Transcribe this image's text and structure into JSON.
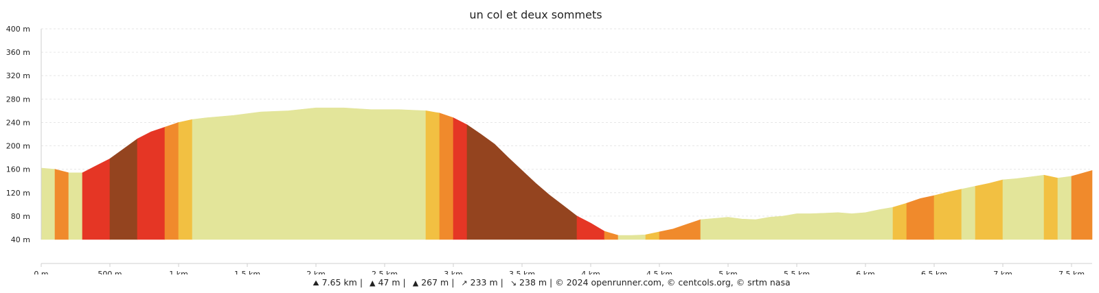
{
  "chart_data": {
    "type": "area",
    "title": "un col et deux sommets",
    "xlabel": "",
    "ylabel": "",
    "x_unit": "km",
    "xlim": [
      0,
      7.65
    ],
    "ylim": [
      40,
      400
    ],
    "y_ticks": [
      40,
      80,
      120,
      160,
      200,
      240,
      280,
      320,
      360,
      400
    ],
    "y_tick_labels": [
      "40 m",
      "80 m",
      "120 m",
      "160 m",
      "200 m",
      "240 m",
      "280 m",
      "320 m",
      "360 m",
      "400 m"
    ],
    "x_ticks": [
      0,
      0.5,
      1,
      1.5,
      2,
      2.5,
      3,
      3.5,
      4,
      4.5,
      5,
      5.5,
      6,
      6.5,
      7,
      7.5
    ],
    "x_tick_labels": [
      "0 m",
      "500 m",
      "1 km",
      "1.5 km",
      "2 km",
      "2.5 km",
      "3 km",
      "3.5 km",
      "4 km",
      "4.5 km",
      "5 km",
      "5.5 km",
      "6 km",
      "6.5 km",
      "7 km",
      "7.5 km"
    ],
    "grid": true,
    "profile": {
      "x": [
        0,
        0.1,
        0.2,
        0.3,
        0.4,
        0.5,
        0.6,
        0.7,
        0.8,
        0.9,
        1.0,
        1.1,
        1.2,
        1.4,
        1.6,
        1.8,
        2.0,
        2.2,
        2.4,
        2.6,
        2.8,
        2.9,
        3.0,
        3.1,
        3.2,
        3.3,
        3.4,
        3.5,
        3.6,
        3.7,
        3.8,
        3.9,
        4.0,
        4.1,
        4.2,
        4.3,
        4.4,
        4.5,
        4.6,
        4.7,
        4.8,
        5.0,
        5.1,
        5.2,
        5.3,
        5.4,
        5.5,
        5.6,
        5.7,
        5.8,
        5.9,
        6.0,
        6.1,
        6.2,
        6.3,
        6.4,
        6.5,
        6.6,
        6.7,
        6.8,
        6.9,
        7.0,
        7.1,
        7.2,
        7.3,
        7.4,
        7.5,
        7.65
      ],
      "y": [
        162,
        160,
        154,
        154,
        166,
        178,
        195,
        212,
        224,
        232,
        240,
        245,
        248,
        252,
        258,
        260,
        265,
        265,
        262,
        262,
        260,
        256,
        248,
        236,
        220,
        203,
        180,
        158,
        136,
        116,
        98,
        80,
        68,
        54,
        47,
        47,
        48,
        53,
        58,
        66,
        74,
        78,
        75,
        74,
        78,
        80,
        84,
        84,
        85,
        86,
        84,
        86,
        91,
        95,
        102,
        110,
        115,
        121,
        126,
        131,
        136,
        142,
        144,
        147,
        150,
        145,
        148,
        158
      ]
    },
    "gradient_segments": [
      {
        "from": 0.0,
        "to": 0.1,
        "color": "#e3e59a"
      },
      {
        "from": 0.1,
        "to": 0.2,
        "color": "#f08a2c"
      },
      {
        "from": 0.2,
        "to": 0.3,
        "color": "#e3e59a"
      },
      {
        "from": 0.3,
        "to": 0.5,
        "color": "#e53625"
      },
      {
        "from": 0.5,
        "to": 0.7,
        "color": "#94441f"
      },
      {
        "from": 0.7,
        "to": 0.9,
        "color": "#e53625"
      },
      {
        "from": 0.9,
        "to": 1.0,
        "color": "#f08a2c"
      },
      {
        "from": 1.0,
        "to": 1.1,
        "color": "#f2c042"
      },
      {
        "from": 1.1,
        "to": 2.8,
        "color": "#e3e59a"
      },
      {
        "from": 2.8,
        "to": 2.9,
        "color": "#f2c042"
      },
      {
        "from": 2.9,
        "to": 3.0,
        "color": "#f08a2c"
      },
      {
        "from": 3.0,
        "to": 3.1,
        "color": "#e53625"
      },
      {
        "from": 3.1,
        "to": 3.9,
        "color": "#94441f"
      },
      {
        "from": 3.9,
        "to": 4.1,
        "color": "#e53625"
      },
      {
        "from": 4.1,
        "to": 4.2,
        "color": "#f08a2c"
      },
      {
        "from": 4.2,
        "to": 4.4,
        "color": "#e3e59a"
      },
      {
        "from": 4.4,
        "to": 4.5,
        "color": "#f2c042"
      },
      {
        "from": 4.5,
        "to": 4.8,
        "color": "#f08a2c"
      },
      {
        "from": 4.8,
        "to": 6.2,
        "color": "#e3e59a"
      },
      {
        "from": 6.2,
        "to": 6.3,
        "color": "#f2c042"
      },
      {
        "from": 6.3,
        "to": 6.5,
        "color": "#f08a2c"
      },
      {
        "from": 6.5,
        "to": 6.7,
        "color": "#f2c042"
      },
      {
        "from": 6.7,
        "to": 6.8,
        "color": "#e3e59a"
      },
      {
        "from": 6.8,
        "to": 7.0,
        "color": "#f2c042"
      },
      {
        "from": 7.0,
        "to": 7.3,
        "color": "#e3e59a"
      },
      {
        "from": 7.3,
        "to": 7.4,
        "color": "#f2c042"
      },
      {
        "from": 7.4,
        "to": 7.5,
        "color": "#e3e59a"
      },
      {
        "from": 7.5,
        "to": 7.65,
        "color": "#f08a2c"
      }
    ]
  },
  "footer": {
    "distance_icon": "hiker-icon",
    "distance": "7.65 km",
    "elev_min_icon": "mountain-low-icon",
    "elev_min": "47 m",
    "elev_max_icon": "mountain-high-icon",
    "elev_max": "267 m",
    "gain_icon": "ascent-icon",
    "gain": "233 m",
    "loss_icon": "descent-icon",
    "loss": "238 m",
    "sep": "|",
    "credits": "© 2024 openrunner.com, © centcols.org, © srtm nasa"
  }
}
